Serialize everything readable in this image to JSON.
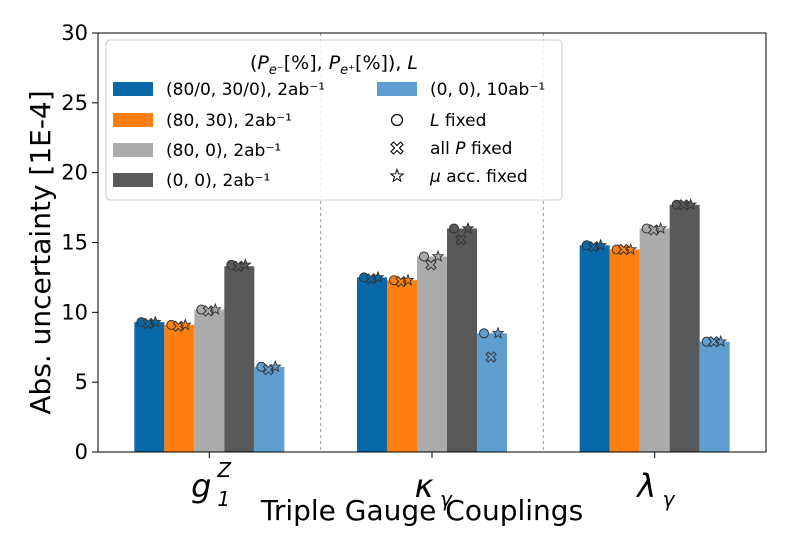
{
  "chart_data": {
    "type": "bar",
    "ylabel": "Abs. uncertainty [1E-4]",
    "xlabel": "Triple Gauge Couplings",
    "ylim": [
      0,
      30
    ],
    "yticks": [
      0,
      5,
      10,
      15,
      20,
      25,
      30
    ],
    "categories": [
      {
        "key": "g1Z",
        "base": "g",
        "sub": "1",
        "sup": "Z"
      },
      {
        "key": "kappa",
        "base": "κ",
        "sub": "γ",
        "sup": ""
      },
      {
        "key": "lambda",
        "base": "λ",
        "sub": "γ",
        "sup": ""
      }
    ],
    "legend_title": "(P_{e⁻}[%], P_{e⁺}[%]), L",
    "series": [
      {
        "name": "(80/0, 30/0), 2ab⁻¹",
        "color": "#0868a8",
        "values": [
          9.3,
          12.5,
          14.8
        ],
        "L_fixed": [
          9.3,
          12.5,
          14.8
        ],
        "allP_fixed": [
          9.2,
          12.4,
          14.7
        ],
        "mu_fixed": [
          9.3,
          12.5,
          14.8
        ]
      },
      {
        "name": "(80, 30), 2ab⁻¹",
        "color": "#ff800e",
        "values": [
          9.1,
          12.3,
          14.5
        ],
        "L_fixed": [
          9.1,
          12.3,
          14.5
        ],
        "allP_fixed": [
          9.0,
          12.2,
          14.5
        ],
        "mu_fixed": [
          9.1,
          12.3,
          14.5
        ]
      },
      {
        "name": "(80, 0), 2ab⁻¹",
        "color": "#ababab",
        "values": [
          10.2,
          14.0,
          16.0
        ],
        "L_fixed": [
          10.2,
          14.0,
          16.0
        ],
        "allP_fixed": [
          10.1,
          13.4,
          15.9
        ],
        "mu_fixed": [
          10.2,
          14.0,
          16.0
        ]
      },
      {
        "name": "(0, 0), 2ab⁻¹",
        "color": "#595959",
        "values": [
          13.3,
          16.0,
          17.7
        ],
        "L_fixed": [
          13.4,
          16.0,
          17.7
        ],
        "allP_fixed": [
          13.3,
          15.2,
          17.7
        ],
        "mu_fixed": [
          13.4,
          16.0,
          17.7
        ]
      },
      {
        "name": "(0, 0), 10ab⁻¹",
        "color": "#5f9ed1",
        "values": [
          6.1,
          8.5,
          7.9
        ],
        "L_fixed": [
          6.1,
          8.5,
          7.9
        ],
        "allP_fixed": [
          5.9,
          6.8,
          7.9
        ],
        "mu_fixed": [
          6.1,
          8.5,
          7.9
        ]
      }
    ],
    "marker_legend": [
      {
        "symbol": "circle",
        "label_plain": "fixed",
        "label_italic": "L"
      },
      {
        "symbol": "cross",
        "label_plain": "all",
        "label_italic": "P",
        "label_after": "fixed"
      },
      {
        "symbol": "star",
        "label_plain": "acc. fixed",
        "label_italic": "μ"
      }
    ],
    "grid": "vertical separators between categories",
    "legend_position": "upper-left"
  }
}
